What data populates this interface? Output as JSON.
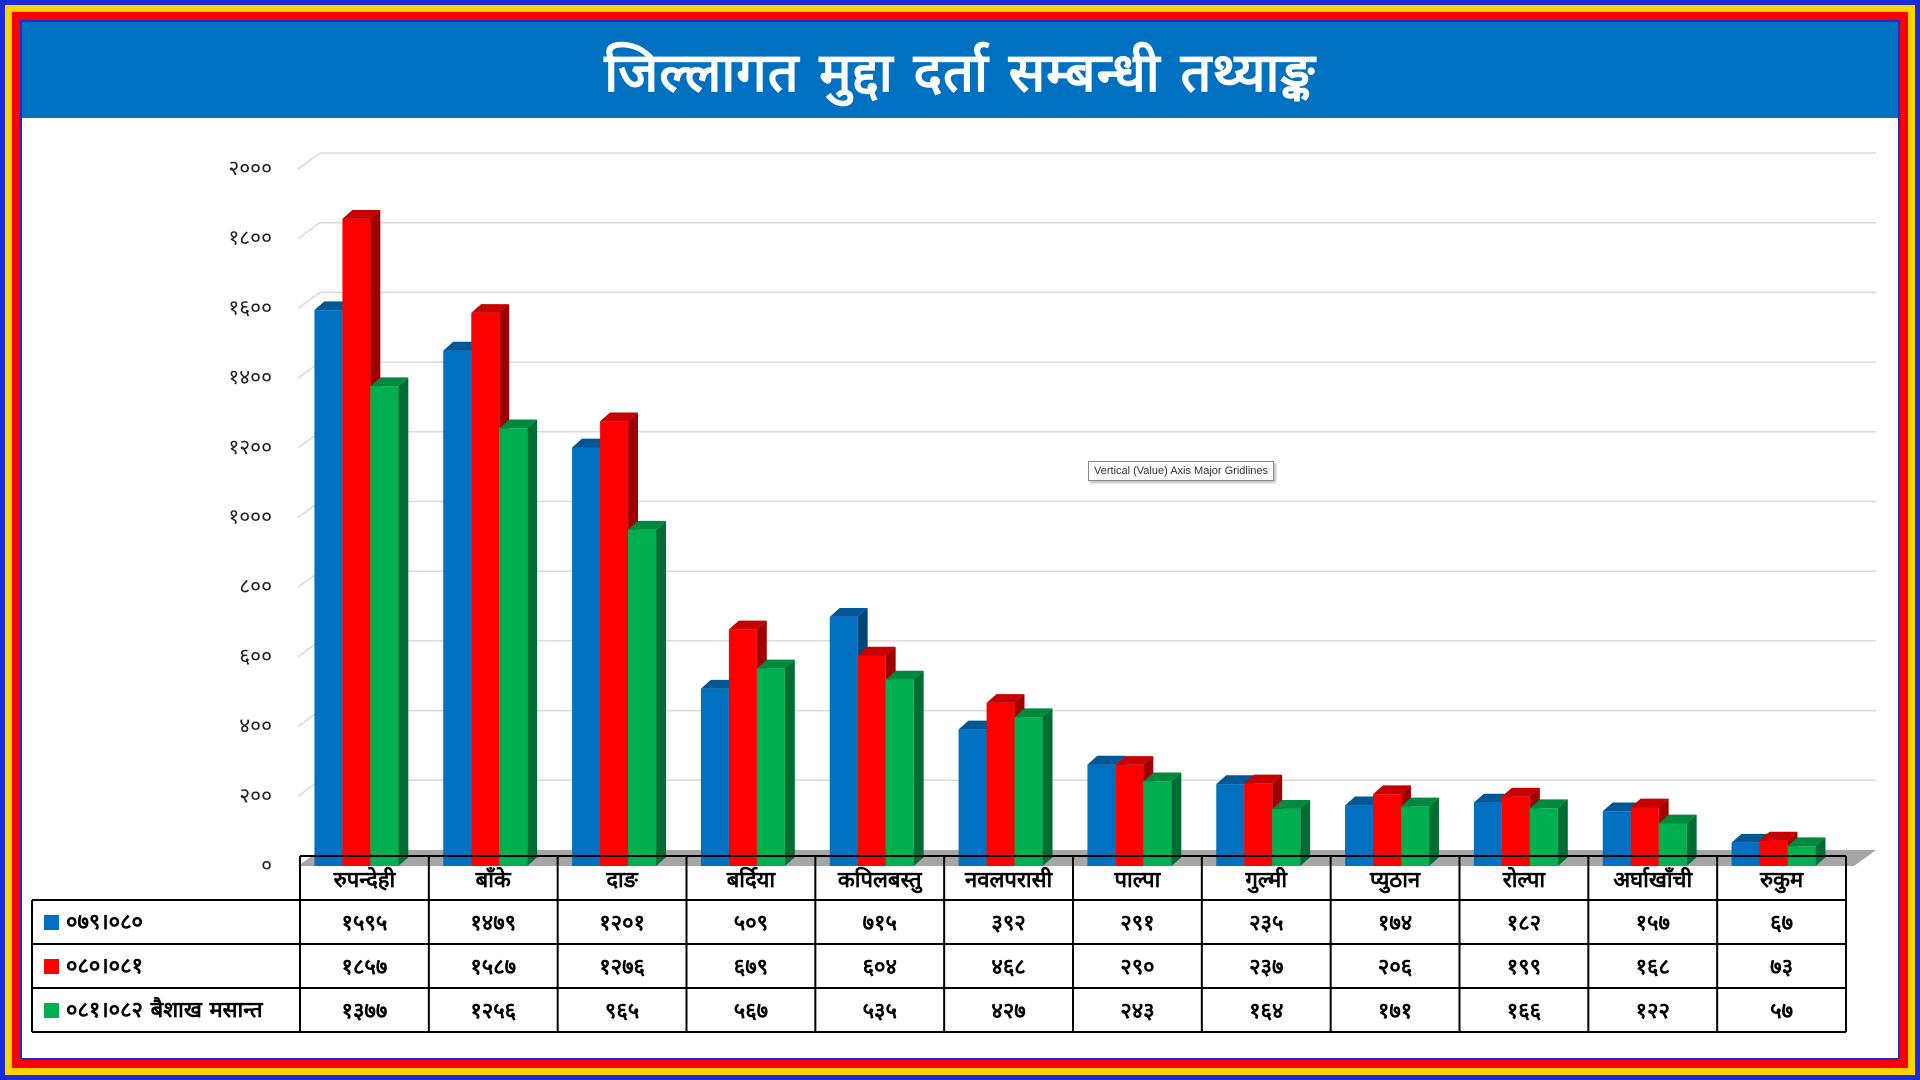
{
  "title": "जिल्लागत मुद्दा दर्ता सम्बन्धी तथ्याङ्क",
  "tooltip": "Vertical (Value) Axis Major Gridlines",
  "colors": {
    "blue": "#0070c0",
    "red": "#ff0000",
    "green": "#00b050",
    "title_bg": "#0070c0"
  },
  "chart_data": {
    "type": "bar",
    "ylim": [
      0,
      2000
    ],
    "yticks": [
      0,
      200,
      400,
      600,
      800,
      1000,
      1200,
      1400,
      1600,
      1800,
      2000
    ],
    "ytick_labels": [
      "०",
      "२००",
      "४००",
      "६००",
      "८००",
      "१०००",
      "१२००",
      "१४००",
      "१६००",
      "१८००",
      "२०००"
    ],
    "grid": true,
    "legend_placement": "table-left",
    "categories": [
      "रुपन्देही",
      "बाँके",
      "दाङ",
      "बर्दिया",
      "कपिलबस्तु",
      "नवलपरासी",
      "पाल्पा",
      "गुल्मी",
      "प्युठान",
      "रोल्पा",
      "अर्घाखाँची",
      "रुकुम"
    ],
    "series": [
      {
        "name": "०७९।०८०",
        "color": "#0070c0",
        "values": [
          1595,
          1479,
          1201,
          509,
          715,
          392,
          291,
          235,
          174,
          182,
          157,
          67
        ],
        "labels": [
          "१५९५",
          "१४७९",
          "१२०१",
          "५०९",
          "७१५",
          "३९२",
          "२९१",
          "२३५",
          "१७४",
          "१८२",
          "१५७",
          "६७"
        ]
      },
      {
        "name": "०८०।०८१",
        "color": "#ff0000",
        "values": [
          1857,
          1587,
          1276,
          679,
          604,
          468,
          290,
          237,
          206,
          199,
          168,
          73
        ],
        "labels": [
          "१८५७",
          "१५८७",
          "१२७६",
          "६७९",
          "६०४",
          "४६८",
          "२९०",
          "२३७",
          "२०६",
          "१९९",
          "१६८",
          "७३"
        ]
      },
      {
        "name": "०८१।०८२ बैशाख मसान्त",
        "color": "#00b050",
        "values": [
          1377,
          1256,
          965,
          567,
          535,
          427,
          243,
          164,
          171,
          166,
          122,
          57
        ],
        "labels": [
          "१३७७",
          "१२५६",
          "९६५",
          "५६७",
          "५३५",
          "४२७",
          "२४३",
          "१६४",
          "१७१",
          "१६६",
          "१२२",
          "५७"
        ]
      }
    ]
  }
}
